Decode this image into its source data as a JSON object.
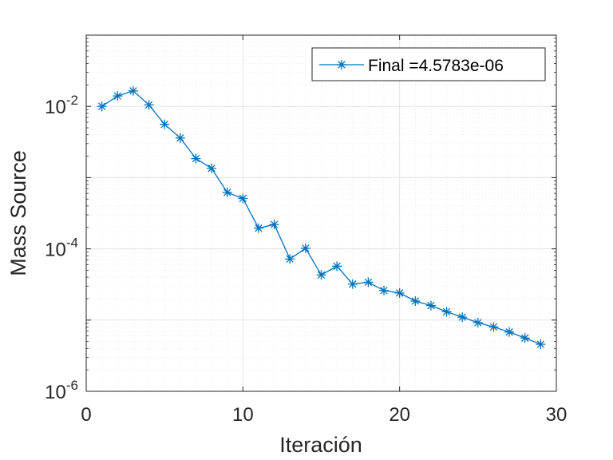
{
  "chart_data": {
    "type": "line",
    "xlabel": "Iteración",
    "ylabel": "Mass Source",
    "xlim": [
      0,
      30
    ],
    "ylim": [
      1e-06,
      0.1
    ],
    "yscale": "log",
    "grid": true,
    "legend_placement": "top-right",
    "x_ticks": [
      {
        "value": 0,
        "label": "0"
      },
      {
        "value": 10,
        "label": "10"
      },
      {
        "value": 20,
        "label": "20"
      },
      {
        "value": 30,
        "label": "30"
      }
    ],
    "y_ticks": [
      {
        "value": 1e-06,
        "base": "10",
        "exp": "-6"
      },
      {
        "value": 0.0001,
        "base": "10",
        "exp": "-4"
      },
      {
        "value": 0.01,
        "base": "10",
        "exp": "-2"
      }
    ],
    "series": [
      {
        "name": "Final =4.5783e-06",
        "color": "#0072BD",
        "marker": "asterisk",
        "x": [
          1,
          2,
          3,
          4,
          5,
          6,
          7,
          8,
          9,
          10,
          11,
          12,
          13,
          14,
          15,
          16,
          17,
          18,
          19,
          20,
          21,
          22,
          23,
          24,
          25,
          26,
          27,
          28,
          29
        ],
        "y": [
          0.01,
          0.014,
          0.0165,
          0.0105,
          0.0056,
          0.0036,
          0.00185,
          0.00135,
          0.00062,
          0.00051,
          0.000195,
          0.00022,
          7.2e-05,
          0.000102,
          4.3e-05,
          5.7e-05,
          3.2e-05,
          3.4e-05,
          2.6e-05,
          2.4e-05,
          1.85e-05,
          1.6e-05,
          1.31e-05,
          1.1e-05,
          9.2e-06,
          8e-06,
          6.8e-06,
          5.6e-06,
          4.5783e-06
        ]
      }
    ]
  }
}
